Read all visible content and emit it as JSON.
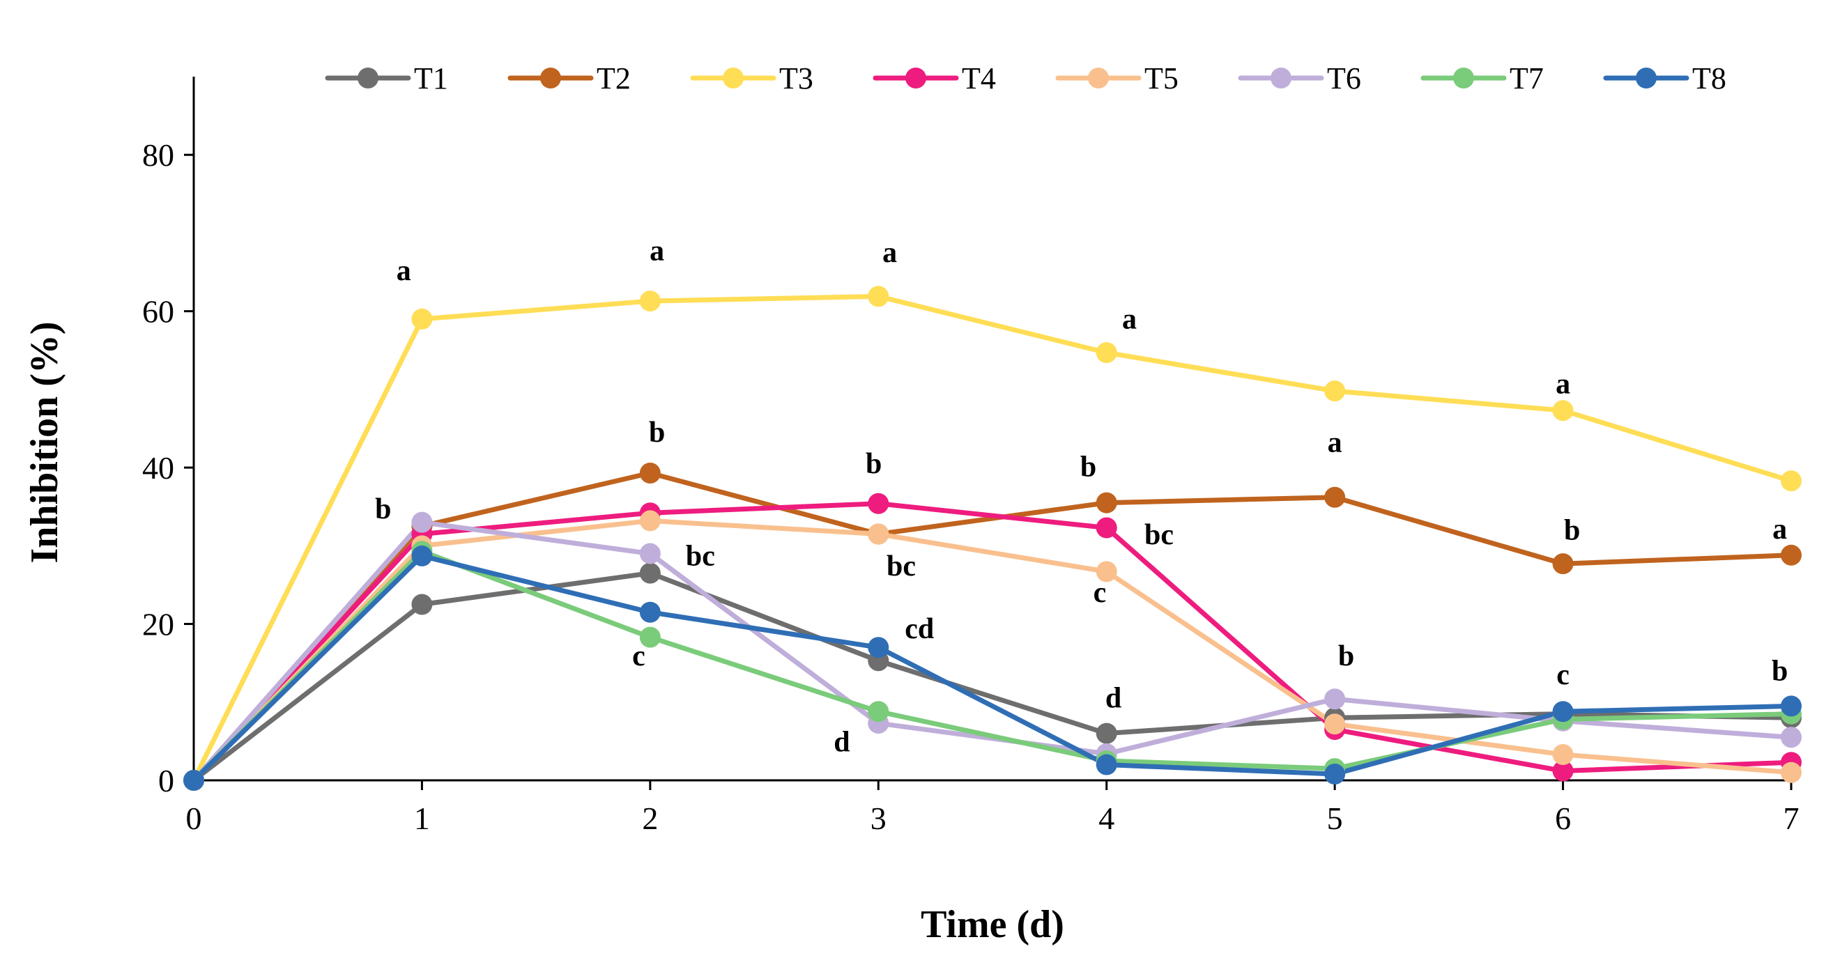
{
  "chart_data": {
    "type": "line",
    "title": "",
    "xlabel": "Time (d)",
    "ylabel": "Inhibition (%)",
    "x": [
      0,
      1,
      2,
      3,
      4,
      5,
      6,
      7
    ],
    "xticks": [
      "0",
      "1",
      "2",
      "3",
      "4",
      "5",
      "6",
      "7"
    ],
    "yticks": [
      "0",
      "20",
      "40",
      "60",
      "80"
    ],
    "xlim": [
      0,
      7
    ],
    "ylim": [
      0,
      90
    ],
    "grid": false,
    "legend_position": "top",
    "series": [
      {
        "name": "T1",
        "color": "#6E6E6E",
        "values": [
          0,
          22.5,
          26.5,
          15.3,
          6.0,
          8.0,
          8.5,
          8.0
        ]
      },
      {
        "name": "T2",
        "color": "#C0631E",
        "values": [
          0,
          32.5,
          39.3,
          31.5,
          35.5,
          36.2,
          27.7,
          28.8
        ]
      },
      {
        "name": "T3",
        "color": "#FFDD55",
        "values": [
          0,
          59.0,
          61.3,
          61.9,
          54.7,
          49.8,
          47.3,
          38.3
        ]
      },
      {
        "name": "T4",
        "color": "#EE1C7E",
        "values": [
          0,
          31.5,
          34.2,
          35.4,
          32.3,
          6.5,
          1.2,
          2.3
        ]
      },
      {
        "name": "T5",
        "color": "#F9C08E",
        "values": [
          0,
          30.0,
          33.2,
          31.5,
          26.7,
          7.2,
          3.3,
          1.0
        ]
      },
      {
        "name": "T6",
        "color": "#BFAEDA",
        "values": [
          0,
          33.0,
          29.0,
          7.3,
          3.4,
          10.4,
          7.6,
          5.5
        ]
      },
      {
        "name": "T7",
        "color": "#7ACB7A",
        "values": [
          0,
          29.3,
          18.3,
          8.8,
          2.5,
          1.5,
          7.8,
          8.5
        ]
      },
      {
        "name": "T8",
        "color": "#2F6EB5",
        "values": [
          0,
          28.7,
          21.5,
          17.0,
          2.0,
          0.8,
          8.8,
          9.5
        ]
      }
    ],
    "annotations": [
      {
        "text": "a",
        "x": 0.92,
        "y": 64
      },
      {
        "text": "b",
        "x": 0.83,
        "y": 33.5
      },
      {
        "text": "a",
        "x": 2.03,
        "y": 66.5
      },
      {
        "text": "b",
        "x": 2.03,
        "y": 43.3
      },
      {
        "text": "bc",
        "x": 2.22,
        "y": 27.5
      },
      {
        "text": "c",
        "x": 1.95,
        "y": 14.7
      },
      {
        "text": "a",
        "x": 3.05,
        "y": 66.3
      },
      {
        "text": "b",
        "x": 2.98,
        "y": 39.3
      },
      {
        "text": "bc",
        "x": 3.1,
        "y": 26.2
      },
      {
        "text": "cd",
        "x": 3.18,
        "y": 18.2
      },
      {
        "text": "d",
        "x": 2.84,
        "y": 3.7
      },
      {
        "text": "a",
        "x": 4.1,
        "y": 57.8
      },
      {
        "text": "b",
        "x": 3.92,
        "y": 38.9
      },
      {
        "text": "bc",
        "x": 4.23,
        "y": 30.2
      },
      {
        "text": "c",
        "x": 3.97,
        "y": 22.8
      },
      {
        "text": "d",
        "x": 4.03,
        "y": 9.3
      },
      {
        "text": "a",
        "x": 5.0,
        "y": 42.0
      },
      {
        "text": "b",
        "x": 5.05,
        "y": 14.7
      },
      {
        "text": "a",
        "x": 6.0,
        "y": 49.5
      },
      {
        "text": "b",
        "x": 6.04,
        "y": 30.8
      },
      {
        "text": "c",
        "x": 6.0,
        "y": 12.3
      },
      {
        "text": "a",
        "x": 6.95,
        "y": 30.9
      },
      {
        "text": "b",
        "x": 6.95,
        "y": 12.8
      }
    ]
  }
}
